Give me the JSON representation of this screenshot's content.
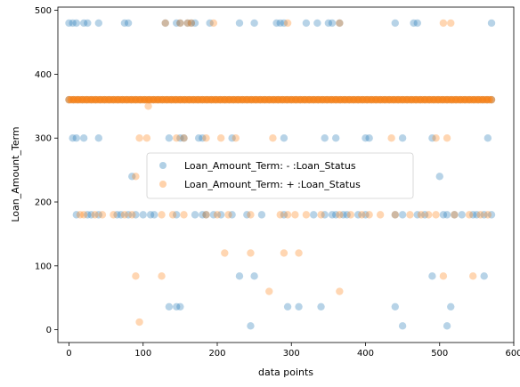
{
  "chart_data": {
    "type": "scatter",
    "title": "",
    "xlabel": "data points",
    "ylabel": "Loan_Amount_Term",
    "xlim": [
      -15,
      600
    ],
    "ylim": [
      -20,
      505
    ],
    "xticks": [
      0,
      100,
      200,
      300,
      400,
      500,
      600
    ],
    "yticks": [
      0,
      100,
      200,
      300,
      400,
      500
    ],
    "grid": false,
    "legend_position": "center-left",
    "series": [
      {
        "name": "Loan_Amount_Term: - :Loan_Status",
        "color": "#1f77b4",
        "points": [
          [
            0,
            480
          ],
          [
            5,
            480
          ],
          [
            10,
            480
          ],
          [
            20,
            480
          ],
          [
            25,
            480
          ],
          [
            40,
            480
          ],
          [
            75,
            480
          ],
          [
            80,
            480
          ],
          [
            130,
            480
          ],
          [
            145,
            480
          ],
          [
            150,
            480
          ],
          [
            160,
            480
          ],
          [
            165,
            480
          ],
          [
            170,
            480
          ],
          [
            190,
            480
          ],
          [
            230,
            480
          ],
          [
            250,
            480
          ],
          [
            280,
            480
          ],
          [
            285,
            480
          ],
          [
            290,
            480
          ],
          [
            320,
            480
          ],
          [
            335,
            480
          ],
          [
            350,
            480
          ],
          [
            355,
            480
          ],
          [
            365,
            480
          ],
          [
            440,
            480
          ],
          [
            465,
            480
          ],
          [
            470,
            480
          ],
          [
            570,
            480
          ],
          [
            5,
            300
          ],
          [
            10,
            300
          ],
          [
            20,
            300
          ],
          [
            40,
            300
          ],
          [
            135,
            300
          ],
          [
            150,
            300
          ],
          [
            155,
            300
          ],
          [
            175,
            300
          ],
          [
            180,
            300
          ],
          [
            220,
            300
          ],
          [
            290,
            300
          ],
          [
            345,
            300
          ],
          [
            360,
            300
          ],
          [
            400,
            300
          ],
          [
            405,
            300
          ],
          [
            450,
            300
          ],
          [
            490,
            300
          ],
          [
            565,
            300
          ],
          [
            85,
            240
          ],
          [
            500,
            240
          ],
          [
            10,
            180
          ],
          [
            25,
            180
          ],
          [
            30,
            180
          ],
          [
            40,
            180
          ],
          [
            65,
            180
          ],
          [
            70,
            180
          ],
          [
            80,
            180
          ],
          [
            90,
            180
          ],
          [
            100,
            180
          ],
          [
            110,
            180
          ],
          [
            115,
            180
          ],
          [
            145,
            180
          ],
          [
            170,
            180
          ],
          [
            180,
            180
          ],
          [
            185,
            180
          ],
          [
            195,
            180
          ],
          [
            205,
            180
          ],
          [
            220,
            180
          ],
          [
            240,
            180
          ],
          [
            260,
            180
          ],
          [
            290,
            180
          ],
          [
            330,
            180
          ],
          [
            345,
            180
          ],
          [
            355,
            180
          ],
          [
            360,
            180
          ],
          [
            370,
            180
          ],
          [
            375,
            180
          ],
          [
            390,
            180
          ],
          [
            400,
            180
          ],
          [
            440,
            180
          ],
          [
            450,
            180
          ],
          [
            470,
            180
          ],
          [
            480,
            180
          ],
          [
            505,
            180
          ],
          [
            510,
            180
          ],
          [
            520,
            180
          ],
          [
            530,
            180
          ],
          [
            545,
            180
          ],
          [
            550,
            180
          ],
          [
            560,
            180
          ],
          [
            570,
            180
          ],
          [
            230,
            84
          ],
          [
            250,
            84
          ],
          [
            490,
            84
          ],
          [
            560,
            84
          ],
          [
            135,
            36
          ],
          [
            145,
            36
          ],
          [
            150,
            36
          ],
          [
            295,
            36
          ],
          [
            310,
            36
          ],
          [
            340,
            36
          ],
          [
            440,
            36
          ],
          [
            515,
            36
          ],
          [
            245,
            6
          ],
          [
            450,
            6
          ],
          [
            510,
            6
          ]
        ]
      },
      {
        "name": "Loan_Amount_Term: + :Loan_Status",
        "color": "#ff7f0e",
        "points": [
          [
            130,
            480
          ],
          [
            150,
            480
          ],
          [
            160,
            480
          ],
          [
            165,
            480
          ],
          [
            195,
            480
          ],
          [
            295,
            480
          ],
          [
            365,
            480
          ],
          [
            505,
            480
          ],
          [
            515,
            480
          ],
          [
            95,
            300
          ],
          [
            105,
            300
          ],
          [
            145,
            300
          ],
          [
            155,
            300
          ],
          [
            185,
            300
          ],
          [
            205,
            300
          ],
          [
            225,
            300
          ],
          [
            275,
            300
          ],
          [
            435,
            300
          ],
          [
            495,
            300
          ],
          [
            510,
            300
          ],
          [
            90,
            240
          ],
          [
            15,
            180
          ],
          [
            20,
            180
          ],
          [
            35,
            180
          ],
          [
            45,
            180
          ],
          [
            60,
            180
          ],
          [
            75,
            180
          ],
          [
            85,
            180
          ],
          [
            125,
            180
          ],
          [
            140,
            180
          ],
          [
            155,
            180
          ],
          [
            185,
            180
          ],
          [
            200,
            180
          ],
          [
            215,
            180
          ],
          [
            245,
            180
          ],
          [
            285,
            180
          ],
          [
            295,
            180
          ],
          [
            305,
            180
          ],
          [
            320,
            180
          ],
          [
            340,
            180
          ],
          [
            365,
            180
          ],
          [
            380,
            180
          ],
          [
            395,
            180
          ],
          [
            405,
            180
          ],
          [
            420,
            180
          ],
          [
            440,
            180
          ],
          [
            460,
            180
          ],
          [
            475,
            180
          ],
          [
            485,
            180
          ],
          [
            495,
            180
          ],
          [
            520,
            180
          ],
          [
            540,
            180
          ],
          [
            555,
            180
          ],
          [
            565,
            180
          ],
          [
            210,
            120
          ],
          [
            245,
            120
          ],
          [
            290,
            120
          ],
          [
            310,
            120
          ],
          [
            90,
            84
          ],
          [
            125,
            84
          ],
          [
            505,
            84
          ],
          [
            545,
            84
          ],
          [
            270,
            60
          ],
          [
            365,
            60
          ],
          [
            95,
            12
          ],
          [
            107,
            350
          ]
        ]
      }
    ],
    "dense_band": {
      "series_index": 1,
      "underlay_series_index": 0,
      "y": 360,
      "x_from": 0,
      "x_to": 572,
      "step": 3
    }
  }
}
